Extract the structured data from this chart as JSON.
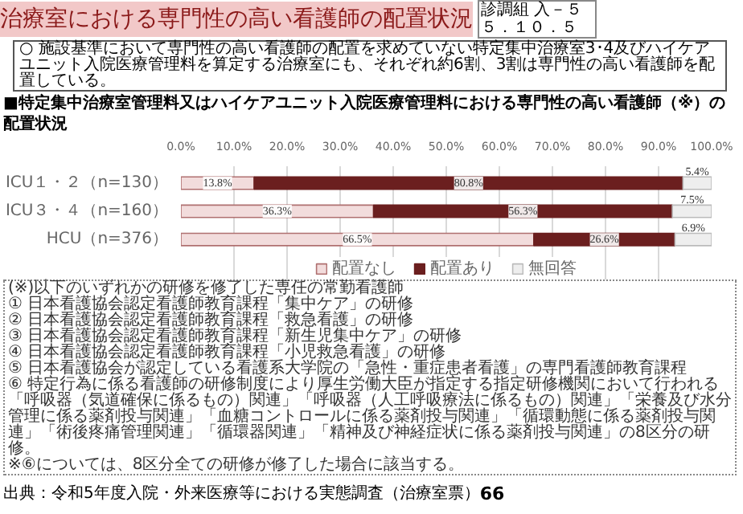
{
  "chart_data": {
    "type": "bar",
    "orientation": "horizontal",
    "stacked": true,
    "title": "治療室における専門性の高い看護師の配置状況",
    "subtitle": "■特定集中治療室管理料又はハイケアユニット入院医療管理料における専門性の高い看護師（※）の配置状況",
    "categories": [
      "ICU１・２（n=130）",
      "ICU３・４（n=160）",
      "HCU（n=376）"
    ],
    "series": [
      {
        "name": "配置なし",
        "color": "#f2dcdc",
        "values": [
          13.8,
          36.3,
          66.5
        ],
        "value_labels": [
          "13.8%",
          "36.3%",
          "66.5%"
        ]
      },
      {
        "name": "配置あり",
        "color": "#6b1f1f",
        "values": [
          80.8,
          56.3,
          26.6
        ],
        "value_labels": [
          "80.8%",
          "56.3%",
          "26.6%"
        ]
      },
      {
        "name": "無回答",
        "color": "#eeeeee",
        "values": [
          5.4,
          7.5,
          6.9
        ],
        "value_labels": [
          "5.4%",
          "7.5%",
          "6.9%"
        ]
      }
    ],
    "xlim": [
      0,
      100
    ],
    "xticks": [
      {
        "value": 0,
        "label": "0.0%"
      },
      {
        "value": 10,
        "label": "10.0%"
      },
      {
        "value": 20,
        "label": "20.0%"
      },
      {
        "value": 30,
        "label": "30.0%"
      },
      {
        "value": 40,
        "label": "40.0%"
      },
      {
        "value": 50,
        "label": "50.0%"
      },
      {
        "value": 60,
        "label": "60.0%"
      },
      {
        "value": 70,
        "label": "70.0%"
      },
      {
        "value": 80,
        "label": "80.0%"
      },
      {
        "value": 90,
        "label": "90.0%"
      },
      {
        "value": 100,
        "label": "100.0%"
      }
    ],
    "grid": "x",
    "legend": "bottom",
    "annotations": [
      "診調組 入－５５．１０．５",
      "○ 施設基準において専門性の高い看護師の配置を求めていない特定集中治療室3･4及びハイケアユニット入院医療管理料を算定する治療室にも、それぞれ約6割、3割は専門性の高い看護師を配置している。",
      "(※)以下のいずれかの研修を修了した専任の常勤看護師",
      "① 日本看護協会認定看護師教育課程「集中ケア」の研修",
      "② 日本看護協会認定看護師教育課程「救急看護」の研修",
      "③ 日本看護協会認定看護師教育課程「新生児集中ケア」の研修",
      "④ 日本看護協会認定看護師教育課程「小児救急看護」の研修",
      "⑤ 日本看護協会が認定している看護系大学院の「急性・重症患者看護」の専門看護師教育課程",
      "⑥ 特定行為に係る看護師の研修制度により厚生労働大臣が指定する指定研修機関において行われる「呼吸器（気道確保に係るもの）関連」「呼吸器（人工呼吸療法に係るもの）関連」「栄養及び水分管理に係る薬剤投与関連」「血糖コントロールに係る薬剤投与関連」「循環動態に係る薬剤投与関連」「術後疼痛管理関連」「循環器関連」「精神及び神経症状に係る薬剤投与関連」の8区分の研修。",
      "※⑥については、8区分全ての研修が修了した場合に該当する。",
      "出典：令和5年度入院・外来医療等における実態調査（治療室票）",
      "66"
    ]
  }
}
